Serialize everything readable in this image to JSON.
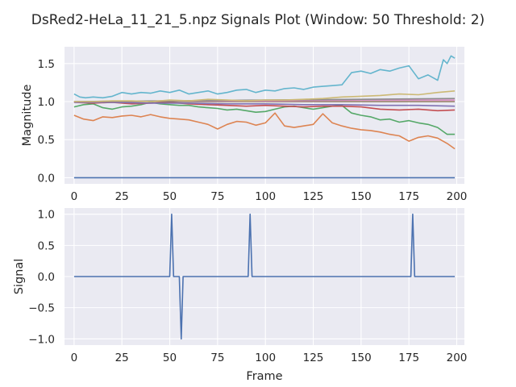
{
  "figure_title": "DsRed2-HeLa_11_21_5.npz Signals Plot (Window: 50 Threshold: 2)",
  "chart_data": [
    {
      "type": "line",
      "ylabel": "Magnitude",
      "xlabel": "",
      "xlim": [
        -5,
        204
      ],
      "ylim": [
        -0.08,
        1.72
      ],
      "xticks": [
        0,
        25,
        50,
        75,
        100,
        125,
        150,
        175,
        200
      ],
      "yticks": [
        0.0,
        0.5,
        1.0,
        1.5
      ],
      "ytick_labels": [
        "0.0",
        "0.5",
        "1.0",
        "1.5"
      ],
      "grid": true,
      "series": [
        {
          "color": "#4c72b0",
          "x": [
            0,
            199
          ],
          "y": [
            0.0,
            0.0
          ]
        },
        {
          "color": "#dd8452",
          "x": [
            0,
            5,
            10,
            15,
            20,
            25,
            30,
            35,
            40,
            45,
            50,
            55,
            60,
            65,
            70,
            75,
            80,
            85,
            90,
            95,
            100,
            105,
            110,
            115,
            120,
            125,
            130,
            135,
            140,
            145,
            150,
            155,
            160,
            165,
            170,
            175,
            180,
            185,
            190,
            195,
            199
          ],
          "y": [
            0.82,
            0.77,
            0.75,
            0.8,
            0.79,
            0.81,
            0.82,
            0.8,
            0.83,
            0.8,
            0.78,
            0.77,
            0.76,
            0.73,
            0.7,
            0.64,
            0.7,
            0.74,
            0.73,
            0.69,
            0.72,
            0.85,
            0.68,
            0.66,
            0.68,
            0.7,
            0.84,
            0.72,
            0.68,
            0.65,
            0.63,
            0.62,
            0.6,
            0.57,
            0.55,
            0.48,
            0.53,
            0.55,
            0.52,
            0.45,
            0.38
          ]
        },
        {
          "color": "#55a868",
          "x": [
            0,
            5,
            10,
            15,
            20,
            25,
            30,
            35,
            40,
            45,
            50,
            55,
            60,
            65,
            70,
            75,
            80,
            85,
            90,
            95,
            100,
            105,
            110,
            115,
            120,
            125,
            130,
            135,
            140,
            145,
            150,
            155,
            160,
            165,
            170,
            175,
            180,
            185,
            190,
            195,
            199
          ],
          "y": [
            0.93,
            0.96,
            0.97,
            0.92,
            0.9,
            0.93,
            0.94,
            0.96,
            0.99,
            0.97,
            0.96,
            0.95,
            0.95,
            0.93,
            0.92,
            0.91,
            0.89,
            0.9,
            0.88,
            0.86,
            0.87,
            0.9,
            0.93,
            0.94,
            0.92,
            0.9,
            0.92,
            0.94,
            0.95,
            0.85,
            0.82,
            0.8,
            0.76,
            0.77,
            0.73,
            0.75,
            0.72,
            0.7,
            0.66,
            0.57,
            0.57
          ]
        },
        {
          "color": "#c44e52",
          "x": [
            0,
            10,
            20,
            30,
            40,
            50,
            60,
            70,
            80,
            90,
            100,
            110,
            120,
            130,
            140,
            150,
            160,
            170,
            180,
            190,
            199
          ],
          "y": [
            0.99,
            0.98,
            0.99,
            0.97,
            0.98,
            0.99,
            0.97,
            0.96,
            0.95,
            0.94,
            0.95,
            0.94,
            0.93,
            0.94,
            0.94,
            0.93,
            0.9,
            0.89,
            0.9,
            0.88,
            0.89
          ]
        },
        {
          "color": "#8172b3",
          "x": [
            0,
            20,
            40,
            60,
            80,
            100,
            120,
            140,
            160,
            180,
            199
          ],
          "y": [
            0.99,
            0.99,
            0.98,
            0.98,
            0.97,
            0.97,
            0.96,
            0.96,
            0.95,
            0.95,
            0.94
          ]
        },
        {
          "color": "#937860",
          "x": [
            0,
            50,
            100,
            150,
            199
          ],
          "y": [
            1.0,
            1.0,
            1.0,
            1.0,
            1.0
          ]
        },
        {
          "color": "#da8bc3",
          "x": [
            0,
            50,
            100,
            150,
            199
          ],
          "y": [
            1.0,
            1.01,
            1.01,
            1.02,
            1.02
          ]
        },
        {
          "color": "#8c8c8c",
          "x": [
            0,
            50,
            100,
            150,
            199
          ],
          "y": [
            1.0,
            1.01,
            1.02,
            1.03,
            1.04
          ]
        },
        {
          "color": "#ccb974",
          "x": [
            0,
            10,
            20,
            30,
            40,
            50,
            60,
            70,
            80,
            90,
            100,
            110,
            120,
            130,
            140,
            150,
            160,
            170,
            180,
            190,
            199
          ],
          "y": [
            1.0,
            1.0,
            1.01,
            1.01,
            1.0,
            1.02,
            1.01,
            1.03,
            1.02,
            1.01,
            1.02,
            1.02,
            1.03,
            1.04,
            1.06,
            1.07,
            1.08,
            1.1,
            1.09,
            1.12,
            1.14
          ]
        },
        {
          "color": "#64b5cd",
          "x": [
            0,
            3,
            6,
            10,
            15,
            20,
            25,
            30,
            35,
            40,
            45,
            50,
            55,
            60,
            65,
            70,
            75,
            80,
            85,
            90,
            95,
            100,
            105,
            110,
            115,
            120,
            125,
            130,
            135,
            140,
            145,
            150,
            155,
            160,
            165,
            170,
            175,
            180,
            185,
            190,
            193,
            195,
            197,
            199
          ],
          "y": [
            1.1,
            1.06,
            1.05,
            1.06,
            1.05,
            1.07,
            1.12,
            1.1,
            1.12,
            1.11,
            1.14,
            1.12,
            1.15,
            1.1,
            1.12,
            1.14,
            1.1,
            1.12,
            1.15,
            1.16,
            1.12,
            1.15,
            1.14,
            1.17,
            1.18,
            1.16,
            1.19,
            1.2,
            1.21,
            1.22,
            1.38,
            1.4,
            1.37,
            1.42,
            1.4,
            1.44,
            1.47,
            1.3,
            1.35,
            1.28,
            1.55,
            1.5,
            1.6,
            1.57
          ]
        }
      ]
    },
    {
      "type": "line",
      "ylabel": "Signal",
      "xlabel": "Frame",
      "xlim": [
        -5,
        204
      ],
      "ylim": [
        -1.1,
        1.1
      ],
      "xticks": [
        0,
        25,
        50,
        75,
        100,
        125,
        150,
        175,
        200
      ],
      "yticks": [
        -1.0,
        -0.5,
        0.0,
        0.5,
        1.0
      ],
      "ytick_labels": [
        "−1.0",
        "−0.5",
        "0.0",
        "0.5",
        "1.0"
      ],
      "grid": true,
      "series": [
        {
          "color": "#4c72b0",
          "x": [
            0,
            50,
            51,
            52,
            54,
            55,
            56,
            57,
            91,
            92,
            93,
            176,
            177,
            178,
            199
          ],
          "y": [
            0,
            0,
            1,
            0,
            0,
            0,
            -1,
            0,
            0,
            1,
            0,
            0,
            1,
            0,
            0
          ]
        }
      ]
    }
  ]
}
